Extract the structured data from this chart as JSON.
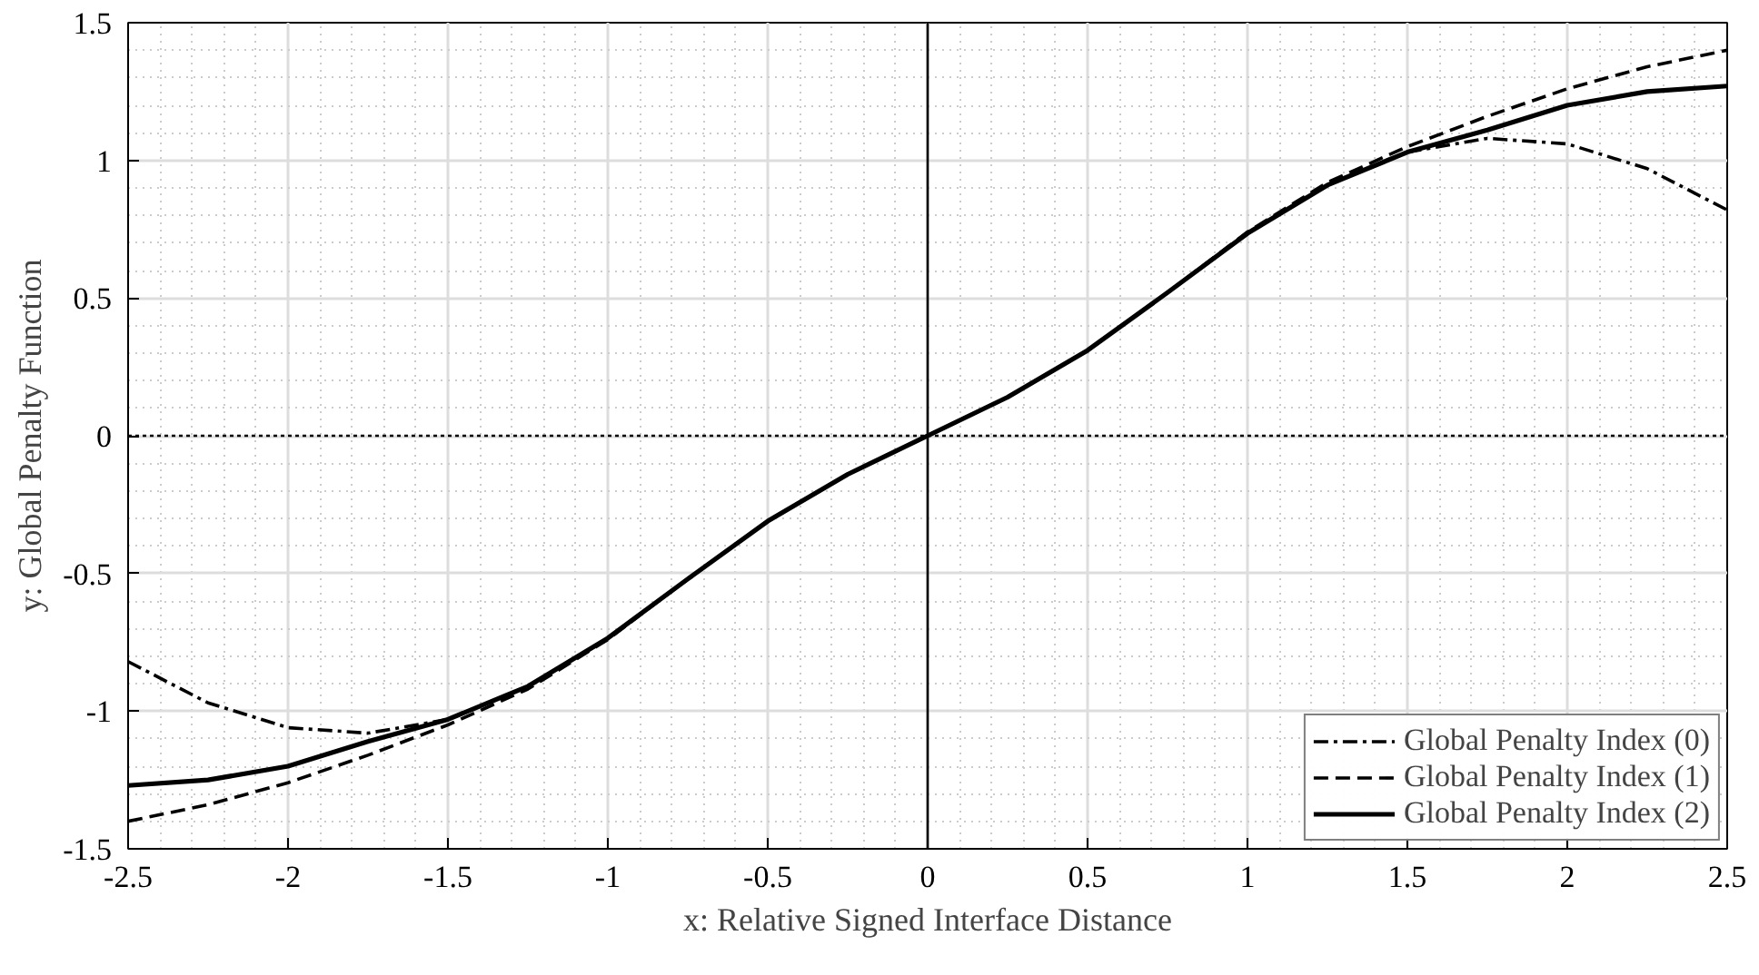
{
  "chart_data": {
    "type": "line",
    "xlabel": "x: Relative Signed Interface Distance",
    "ylabel": "y: Global Penalty Function",
    "x": [
      -2.5,
      -2.25,
      -2,
      -1.75,
      -1.5,
      -1.25,
      -1,
      -0.75,
      -0.5,
      -0.25,
      0,
      0.25,
      0.5,
      0.75,
      1,
      1.25,
      1.5,
      1.75,
      2,
      2.25,
      2.5
    ],
    "series": [
      {
        "name": "Global Penalty Index (0)",
        "color": "#000000",
        "line_style": "dashdot",
        "values": [
          -0.82,
          -0.97,
          -1.06,
          -1.08,
          -1.03,
          -0.91,
          -0.735,
          -0.52,
          -0.31,
          -0.14,
          0,
          0.14,
          0.31,
          0.52,
          0.735,
          0.91,
          1.03,
          1.08,
          1.06,
          0.97,
          0.82
        ]
      },
      {
        "name": "Global Penalty Index (1)",
        "color": "#000000",
        "line_style": "dashed",
        "values": [
          -1.4,
          -1.34,
          -1.26,
          -1.16,
          -1.05,
          -0.92,
          -0.74,
          -0.52,
          -0.31,
          -0.14,
          0,
          0.14,
          0.31,
          0.52,
          0.74,
          0.92,
          1.05,
          1.16,
          1.26,
          1.34,
          1.4
        ]
      },
      {
        "name": "Global Penalty Index (2)",
        "color": "#000000",
        "line_style": "solid",
        "values": [
          -1.27,
          -1.25,
          -1.2,
          -1.11,
          -1.03,
          -0.91,
          -0.735,
          -0.52,
          -0.31,
          -0.14,
          0,
          0.14,
          0.31,
          0.52,
          0.735,
          0.91,
          1.03,
          1.11,
          1.2,
          1.25,
          1.27
        ]
      }
    ],
    "xlim": [
      -2.5,
      2.5
    ],
    "xticks": [
      -2.5,
      -2,
      -1.5,
      -1,
      -0.5,
      0,
      0.5,
      1,
      1.5,
      2,
      2.5
    ],
    "ylim": [
      -1.5,
      1.5
    ],
    "yticks": [
      -1.5,
      -1,
      -0.5,
      0,
      0.5,
      1,
      1.5
    ],
    "ref_lines": [
      {
        "axis": "x",
        "value": 0,
        "color": "#000000",
        "line_style": "solid"
      },
      {
        "axis": "y",
        "value": 0,
        "color": "#000000",
        "line_style": "dotted"
      }
    ],
    "grid": true,
    "legend": "bottom right"
  }
}
